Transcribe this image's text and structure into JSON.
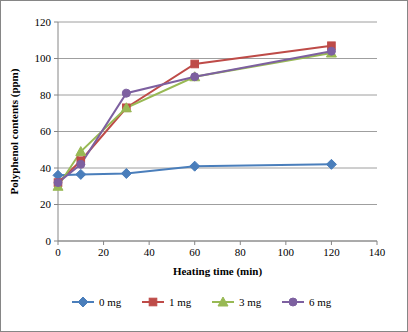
{
  "chart_data": {
    "type": "line",
    "x_label": "Heating time (min)",
    "y_label": "Polyphenol contents (ppm)",
    "x": [
      0,
      10,
      30,
      60,
      120
    ],
    "series": [
      {
        "name": "0 mg",
        "color": "#4a7ebb",
        "marker": "diamond",
        "values": [
          36,
          36.5,
          37,
          41,
          42
        ]
      },
      {
        "name": "1 mg",
        "color": "#be4b48",
        "marker": "square",
        "values": [
          32,
          44,
          73,
          97,
          107
        ]
      },
      {
        "name": "3 mg",
        "color": "#98b954",
        "marker": "triangle",
        "values": [
          30,
          49,
          73,
          90,
          103
        ]
      },
      {
        "name": "6 mg",
        "color": "#7d60a0",
        "marker": "circle",
        "values": [
          32,
          42,
          81,
          90,
          104
        ]
      }
    ],
    "xlim": [
      0,
      140
    ],
    "xticks": [
      0,
      20,
      40,
      60,
      80,
      100,
      120,
      140
    ],
    "ylim": [
      0,
      120
    ],
    "yticks": [
      0,
      20,
      40,
      60,
      80,
      100,
      120
    ],
    "grid": true,
    "legend": "bottom"
  }
}
